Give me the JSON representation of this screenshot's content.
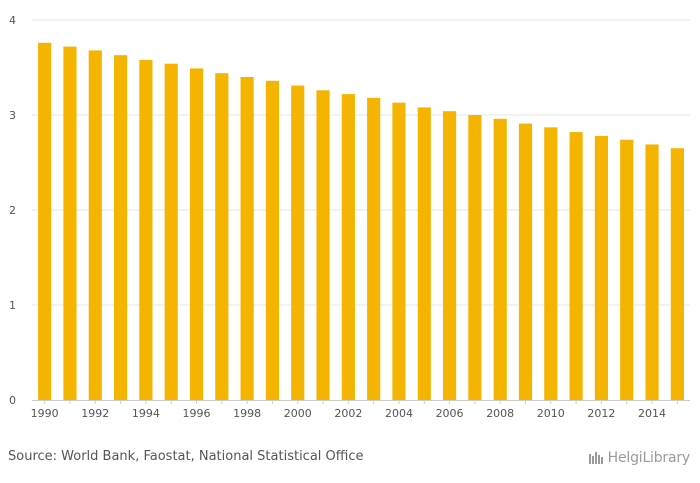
{
  "chart_data": {
    "type": "bar",
    "categories": [
      "1990",
      "1991",
      "1992",
      "1993",
      "1994",
      "1995",
      "1996",
      "1997",
      "1998",
      "1999",
      "2000",
      "2001",
      "2002",
      "2003",
      "2004",
      "2005",
      "2006",
      "2007",
      "2008",
      "2009",
      "2010",
      "2011",
      "2012",
      "2013",
      "2014",
      "2015"
    ],
    "x_tick_labels": [
      "1990",
      "1992",
      "1994",
      "1996",
      "1998",
      "2000",
      "2002",
      "2004",
      "2006",
      "2008",
      "2010",
      "2012",
      "2014"
    ],
    "values": [
      3.76,
      3.72,
      3.68,
      3.63,
      3.58,
      3.54,
      3.49,
      3.44,
      3.4,
      3.36,
      3.31,
      3.26,
      3.22,
      3.18,
      3.13,
      3.08,
      3.04,
      3.0,
      2.96,
      2.91,
      2.87,
      2.82,
      2.78,
      2.74,
      2.69,
      2.65
    ],
    "ylim": [
      0,
      4
    ],
    "y_ticks": [
      0,
      1,
      2,
      3,
      4
    ],
    "grid": true,
    "bar_color": "#f5b400",
    "title": "",
    "xlabel": "",
    "ylabel": ""
  },
  "footer": {
    "source": "Source: World Bank, Faostat, National Statistical Office",
    "logo_text": "HelgiLibrary",
    "logo_icon": "library-icon"
  }
}
